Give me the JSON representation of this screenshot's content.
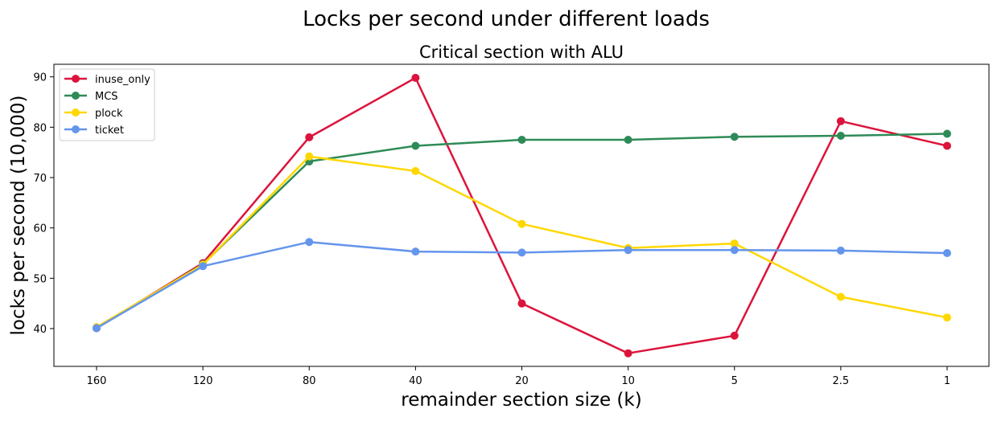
{
  "figure": {
    "suptitle": "Locks per second under different loads"
  },
  "chart_data": {
    "type": "line",
    "title": "Critical section with ALU",
    "xlabel": "remainder section size (k)",
    "ylabel": "locks per second (10,000)",
    "categories": [
      "160",
      "120",
      "80",
      "40",
      "20",
      "10",
      "5",
      "2.5",
      "1"
    ],
    "ylim": [
      32.5,
      92.5
    ],
    "yticks": [
      40,
      50,
      60,
      70,
      80,
      90
    ],
    "grid": false,
    "legend_position": "upper-left",
    "series": [
      {
        "name": "inuse_only",
        "color": "#dc143c",
        "values": [
          40.1,
          53.0,
          78.0,
          89.8,
          45.0,
          35.1,
          38.6,
          81.2,
          76.3
        ]
      },
      {
        "name": "MCS",
        "color": "#2e8b57",
        "values": [
          40.1,
          52.8,
          73.2,
          76.3,
          77.5,
          77.5,
          78.1,
          78.3,
          78.7
        ]
      },
      {
        "name": "plock",
        "color": "#ffd700",
        "values": [
          40.3,
          52.7,
          74.2,
          71.3,
          60.8,
          56.0,
          56.9,
          46.3,
          42.2
        ]
      },
      {
        "name": "ticket",
        "color": "#6495ed",
        "values": [
          40.1,
          52.4,
          57.2,
          55.3,
          55.1,
          55.6,
          55.6,
          55.5,
          55.0
        ]
      }
    ]
  }
}
